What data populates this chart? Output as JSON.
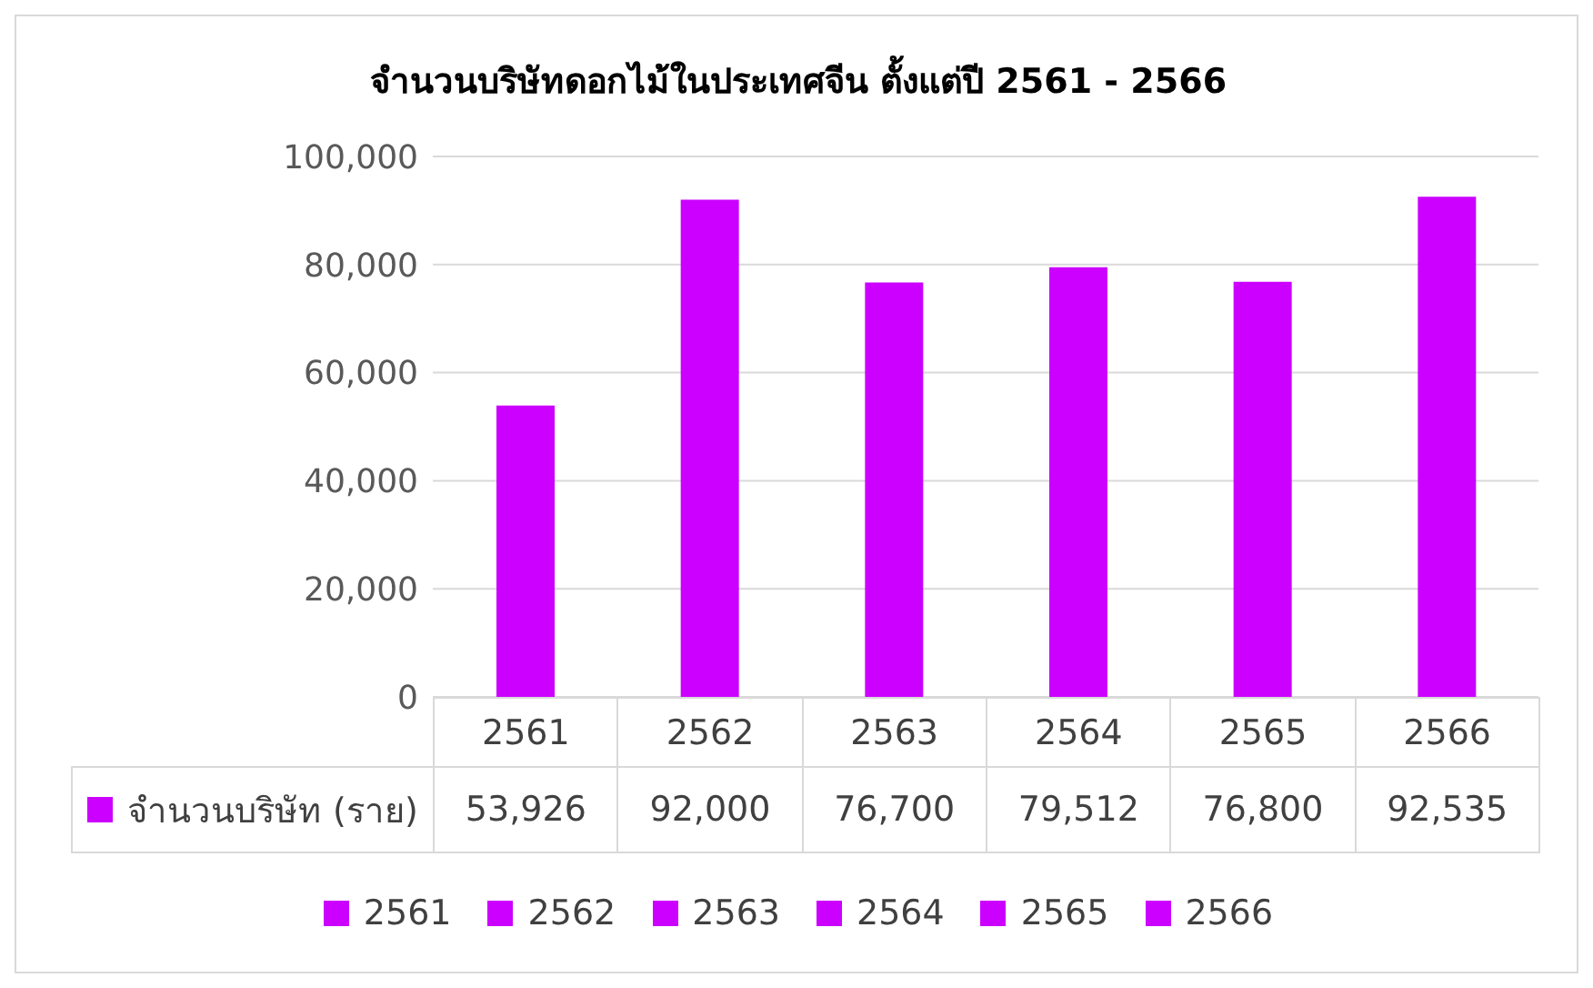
{
  "chart_data": {
    "type": "bar",
    "title": "จำนวนบริษัทดอกไม้ในประเทศจีน ตั้งแต่ปี 2561 - 2566",
    "categories": [
      "2561",
      "2562",
      "2563",
      "2564",
      "2565",
      "2566"
    ],
    "series": [
      {
        "name": "จำนวนบริษัท (ราย)",
        "color": "#cc00ff",
        "colors": [
          "#cc00ff",
          "#cc00ff",
          "#cc00ff",
          "#cc00ff",
          "#cc00ff",
          "#cc00ff"
        ],
        "values": [
          53926,
          92000,
          76700,
          79512,
          76800,
          92535
        ],
        "value_labels": [
          "53,926",
          "92,000",
          "76,700",
          "79,512",
          "76,800",
          "92,535"
        ]
      }
    ],
    "ylim": [
      0,
      100000
    ],
    "yticks": [
      {
        "value": 0,
        "label": "0"
      },
      {
        "value": 20000,
        "label": "20,000"
      },
      {
        "value": 40000,
        "label": "40,000"
      },
      {
        "value": 60000,
        "label": "60,000"
      },
      {
        "value": 80000,
        "label": "80,000"
      },
      {
        "value": 100000,
        "label": "100,000"
      }
    ],
    "grid": "y",
    "legend": "bottom"
  }
}
